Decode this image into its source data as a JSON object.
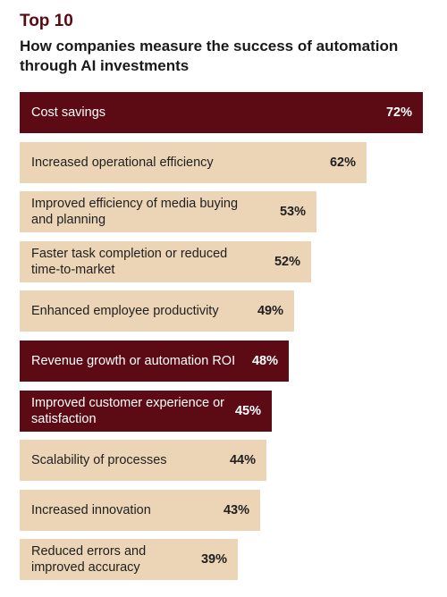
{
  "header": {
    "kicker": "Top 10",
    "title": "How companies measure the success of automation through AI investments"
  },
  "colors": {
    "highlight": "#5c0b14",
    "base": "#ecd5b7",
    "kicker": "#5a0a12"
  },
  "chart_data": {
    "type": "bar",
    "orientation": "horizontal",
    "title": "How companies measure the success of automation through AI investments",
    "categories": [
      "Cost savings",
      "Increased operational efficiency",
      "Improved efficiency of media buying and planning",
      "Faster task completion or reduced time-to-market",
      "Enhanced employee productivity",
      "Revenue growth or automation ROI",
      "Improved customer experience or satisfaction",
      "Scalability of processes",
      "Increased innovation",
      "Reduced errors and improved accuracy"
    ],
    "values": [
      72,
      62,
      53,
      52,
      49,
      48,
      45,
      44,
      43,
      39
    ],
    "value_labels": [
      "72%",
      "62%",
      "53%",
      "52%",
      "49%",
      "48%",
      "45%",
      "44%",
      "43%",
      "39%"
    ],
    "highlighted": [
      true,
      false,
      false,
      false,
      false,
      true,
      true,
      false,
      false,
      false
    ],
    "unit": "%",
    "xlim": [
      0,
      72
    ],
    "grid": false,
    "legend": "none"
  }
}
